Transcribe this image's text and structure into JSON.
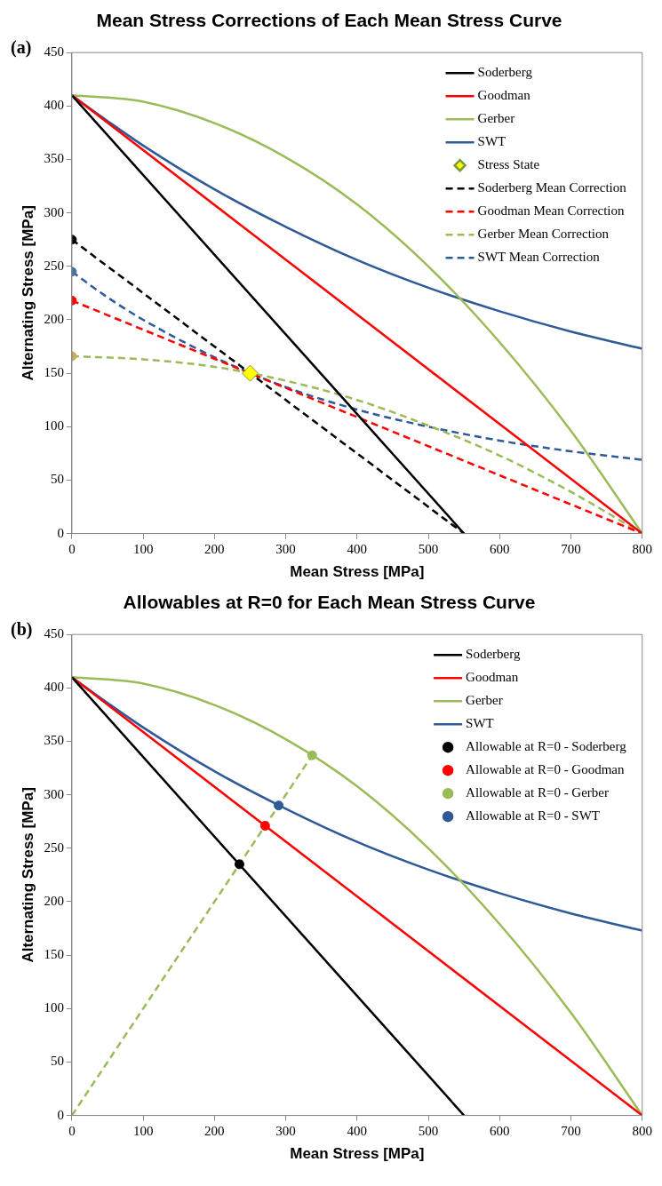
{
  "chart_data": [
    {
      "type": "line",
      "title": "Mean Stress Corrections of Each Mean Stress Curve",
      "xlabel": "Mean Stress [MPa]",
      "ylabel": "Alternating Stress [MPa]",
      "annotations": [
        "(a)"
      ],
      "xlim": [
        0,
        800
      ],
      "ylim": [
        0,
        450
      ],
      "xticks": [
        0,
        100,
        200,
        300,
        400,
        500,
        600,
        700,
        800
      ],
      "yticks": [
        0,
        50,
        100,
        150,
        200,
        250,
        300,
        350,
        400,
        450
      ],
      "grid": false,
      "legend": "top right",
      "marker": "none",
      "series": [
        {
          "name": "Soderberg",
          "color": "#000000",
          "x": [
            0,
            550
          ],
          "values": [
            410,
            0
          ],
          "line_style": "solid"
        },
        {
          "name": "Goodman",
          "color": "#ff0000",
          "x": [
            0,
            800
          ],
          "values": [
            410,
            0
          ],
          "line_style": "solid"
        },
        {
          "name": "Gerber",
          "color": "#9bbb59",
          "x": [
            0,
            100,
            200,
            300,
            400,
            500,
            600,
            700,
            800
          ],
          "values": [
            410,
            404,
            384,
            352,
            308,
            250,
            179,
            96,
            0
          ],
          "line_style": "solid"
        },
        {
          "name": "SWT",
          "color": "#2e5a97",
          "x": [
            0,
            50,
            100,
            200,
            300,
            400,
            500,
            600,
            700,
            800
          ],
          "values": [
            410,
            386,
            363,
            322,
            287,
            256,
            230,
            208,
            189,
            173
          ],
          "line_style": "solid"
        },
        {
          "name": "Stress State",
          "type": "scatter",
          "marker": "diamond",
          "color": "#ffff00",
          "x": [
            250
          ],
          "values": [
            150
          ]
        },
        {
          "name": "Soderberg Mean Correction",
          "color": "#000000",
          "x": [
            0,
            550
          ],
          "values": [
            275,
            0
          ],
          "line_style": "dashed"
        },
        {
          "name": "Goodman Mean Correction",
          "color": "#ff0000",
          "x": [
            0,
            800
          ],
          "values": [
            218,
            0
          ],
          "line_style": "dashed"
        },
        {
          "name": "Gerber Mean Correction",
          "color": "#9bbb59",
          "x": [
            0,
            100,
            200,
            300,
            400,
            500,
            600,
            700,
            800
          ],
          "values": [
            166,
            163,
            156,
            143,
            125,
            101,
            73,
            39,
            0
          ],
          "line_style": "dashed"
        },
        {
          "name": "SWT Mean Correction",
          "color": "#2e5a97",
          "x": [
            0,
            50,
            100,
            200,
            300,
            400,
            500,
            600,
            700,
            800
          ],
          "values": [
            245,
            221,
            200,
            165,
            137,
            116,
            100,
            87,
            77,
            69
          ],
          "line_style": "dashed"
        },
        {
          "type": "scatter",
          "marker": "circle",
          "color": "#000000",
          "x": [
            0
          ],
          "values": [
            275
          ]
        },
        {
          "type": "scatter",
          "marker": "circle",
          "color": "#4a72a8",
          "x": [
            0
          ],
          "values": [
            245
          ]
        },
        {
          "type": "scatter",
          "marker": "circle",
          "color": "#ff0000",
          "x": [
            0
          ],
          "values": [
            218
          ]
        },
        {
          "type": "scatter",
          "marker": "circle",
          "color": "#c8aa5a",
          "x": [
            0
          ],
          "values": [
            166
          ]
        }
      ]
    },
    {
      "type": "line",
      "title": "Allowables at R=0 for Each Mean Stress Curve",
      "xlabel": "Mean Stress [MPa]",
      "ylabel": "Alternating Stress [MPa]",
      "annotations": [
        "(b)"
      ],
      "xlim": [
        0,
        800
      ],
      "ylim": [
        0,
        450
      ],
      "xticks": [
        0,
        100,
        200,
        300,
        400,
        500,
        600,
        700,
        800
      ],
      "yticks": [
        0,
        50,
        100,
        150,
        200,
        250,
        300,
        350,
        400,
        450
      ],
      "grid": false,
      "legend": "top right",
      "marker": "none",
      "series": [
        {
          "name": "Soderberg",
          "color": "#000000",
          "x": [
            0,
            550
          ],
          "values": [
            410,
            0
          ],
          "line_style": "solid"
        },
        {
          "name": "Goodman",
          "color": "#ff0000",
          "x": [
            0,
            800
          ],
          "values": [
            410,
            0
          ],
          "line_style": "solid"
        },
        {
          "name": "Gerber",
          "color": "#9bbb59",
          "x": [
            0,
            100,
            200,
            300,
            400,
            500,
            600,
            700,
            800
          ],
          "values": [
            410,
            404,
            384,
            352,
            308,
            250,
            179,
            96,
            0
          ],
          "line_style": "solid"
        },
        {
          "name": "SWT",
          "color": "#2e5a97",
          "x": [
            0,
            50,
            100,
            200,
            300,
            400,
            500,
            600,
            700,
            800
          ],
          "values": [
            410,
            386,
            363,
            322,
            287,
            256,
            230,
            208,
            189,
            173
          ],
          "line_style": "solid"
        },
        {
          "color": "#9bbb59",
          "x": [
            0,
            337
          ],
          "values": [
            0,
            337
          ],
          "line_style": "dashed"
        },
        {
          "name": "Allowable at R=0 - Soderberg",
          "type": "scatter",
          "marker": "circle",
          "color": "#000000",
          "x": [
            235
          ],
          "values": [
            235
          ]
        },
        {
          "name": "Allowable at R=0 - Goodman",
          "type": "scatter",
          "marker": "circle",
          "color": "#ff0000",
          "x": [
            271
          ],
          "values": [
            271
          ]
        },
        {
          "name": "Allowable at R=0 - Gerber",
          "type": "scatter",
          "marker": "circle",
          "color": "#9bbb59",
          "x": [
            337
          ],
          "values": [
            337
          ]
        },
        {
          "name": "Allowable at R=0 - SWT",
          "type": "scatter",
          "marker": "circle",
          "color": "#2e5a97",
          "x": [
            290
          ],
          "values": [
            290
          ]
        }
      ]
    }
  ]
}
